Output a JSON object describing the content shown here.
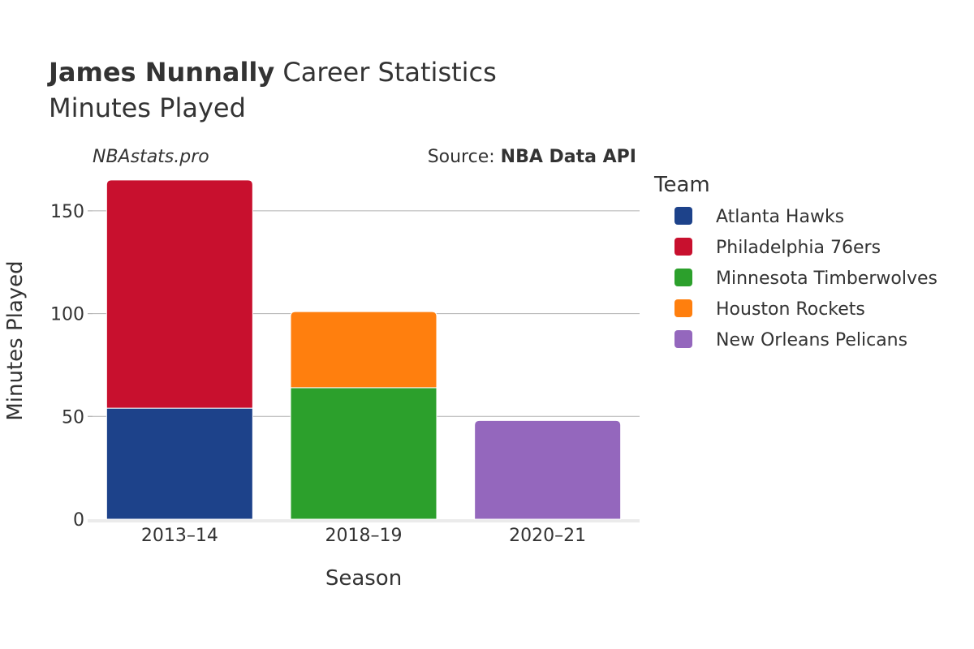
{
  "header": {
    "player_name": "James Nunnally",
    "title_rest": " Career Statistics",
    "subtitle": "Minutes Played"
  },
  "credits": {
    "site": "NBAstats.pro",
    "source_prefix": "Source: ",
    "source_name": "NBA Data API"
  },
  "legend": {
    "title": "Team"
  },
  "chart_data": {
    "type": "bar",
    "stacked": true,
    "categories": [
      "2013–14",
      "2018–19",
      "2020–21"
    ],
    "xlabel": "Season",
    "ylabel": "Minutes Played",
    "ylim": [
      0,
      170
    ],
    "yticks": [
      0,
      50,
      100,
      150
    ],
    "grid": true,
    "legend_position": "right",
    "series": [
      {
        "name": "Atlanta Hawks",
        "color": "#1d428a",
        "values": [
          54,
          0,
          0
        ]
      },
      {
        "name": "Philadelphia 76ers",
        "color": "#c8102e",
        "values": [
          111,
          0,
          0
        ]
      },
      {
        "name": "Minnesota Timberwolves",
        "color": "#2ca02c",
        "values": [
          0,
          64,
          0
        ]
      },
      {
        "name": "Houston Rockets",
        "color": "#ff7f0e",
        "values": [
          0,
          37,
          0
        ]
      },
      {
        "name": "New Orleans Pelicans",
        "color": "#9467bd",
        "values": [
          0,
          0,
          48
        ]
      }
    ]
  }
}
